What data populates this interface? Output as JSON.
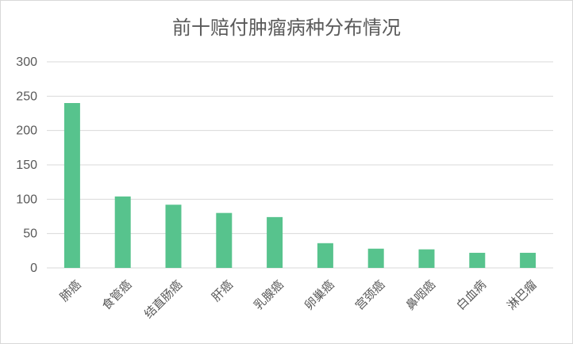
{
  "chart_data": {
    "type": "bar",
    "title": "前十赔付肿瘤病种分布情况",
    "categories": [
      "肺癌",
      "食管癌",
      "结直肠癌",
      "肝癌",
      "乳腺癌",
      "卵巢癌",
      "宫颈癌",
      "鼻咽癌",
      "白血病",
      "淋巴瘤"
    ],
    "values": [
      240,
      104,
      92,
      80,
      74,
      36,
      28,
      27,
      22,
      22
    ],
    "ylim": [
      0,
      300
    ],
    "yticks": [
      0,
      50,
      100,
      150,
      200,
      250,
      300
    ],
    "grid": true,
    "legend": "none",
    "colors": {
      "bar": "#57c38d",
      "grid": "#d9d9d9",
      "text": "#595959"
    }
  }
}
